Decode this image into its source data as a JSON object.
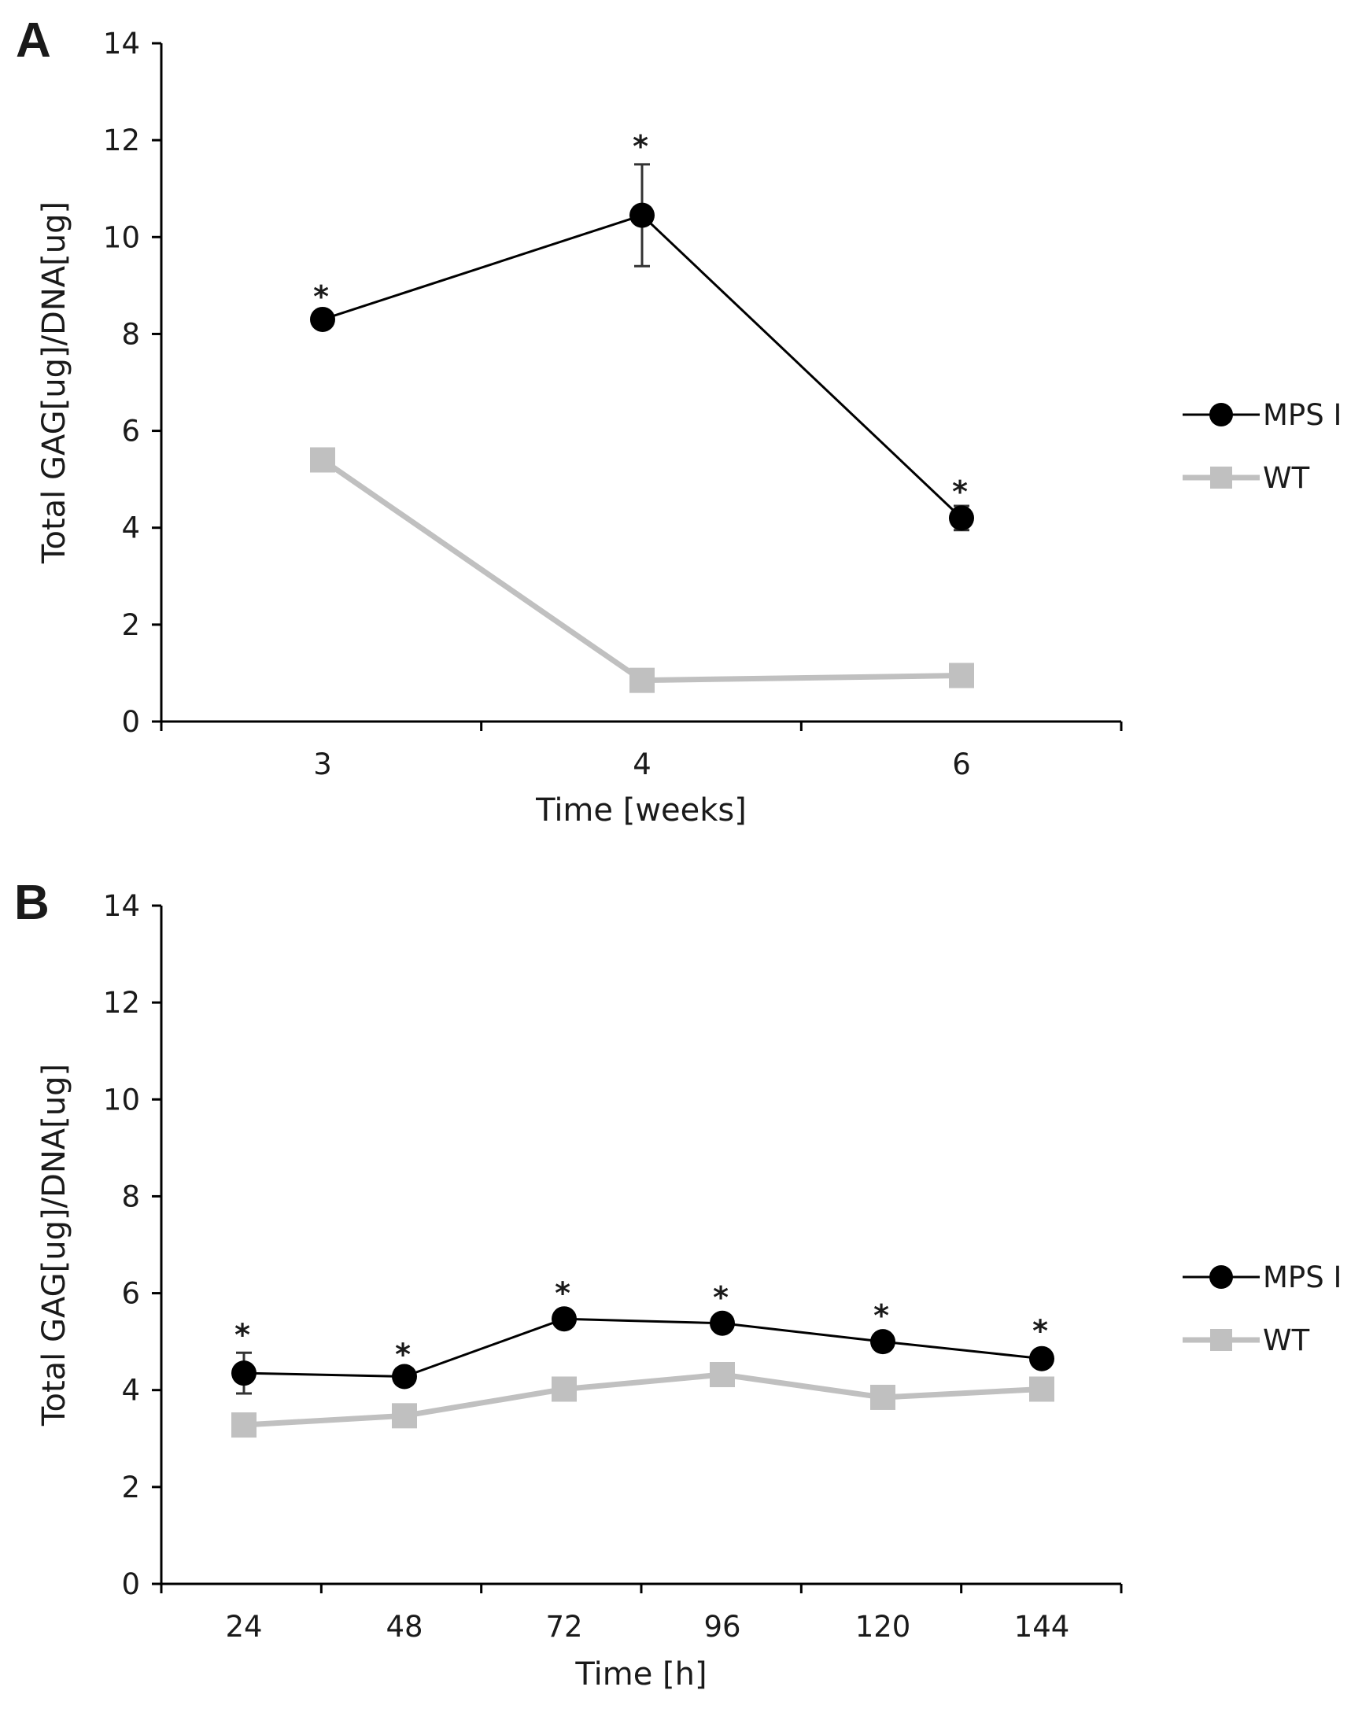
{
  "chart_data": [
    {
      "type": "line",
      "panel": "A",
      "xlabel": "Time [weeks]",
      "ylabel": "Total GAG[ug]/DNA[ug]",
      "categories": [
        "3",
        "4",
        "6"
      ],
      "ylim": [
        0,
        14
      ],
      "yticks": [
        "0",
        "2",
        "4",
        "6",
        "8",
        "10",
        "12",
        "14"
      ],
      "series": [
        {
          "name": "MPS I",
          "values": [
            8.3,
            10.45,
            4.2
          ],
          "errors": [
            0.1,
            1.05,
            0.25
          ],
          "significance": [
            "*",
            "*",
            "*"
          ],
          "color": "#000000",
          "marker": "circle"
        },
        {
          "name": "WT",
          "values": [
            5.4,
            0.85,
            0.95
          ],
          "errors": [
            0.1,
            0.1,
            0.1
          ],
          "color": "#c0c0c0",
          "marker": "square"
        }
      ],
      "legend_position": "right"
    },
    {
      "type": "line",
      "panel": "B",
      "xlabel": "Time [h]",
      "ylabel": "Total GAG[ug]/DNA[ug]",
      "categories": [
        "24",
        "48",
        "72",
        "96",
        "120",
        "144"
      ],
      "ylim": [
        0,
        14
      ],
      "yticks": [
        "0",
        "2",
        "4",
        "6",
        "8",
        "10",
        "12",
        "14"
      ],
      "series": [
        {
          "name": "MPS I",
          "values": [
            4.35,
            4.28,
            5.47,
            5.38,
            5.0,
            4.65
          ],
          "errors": [
            0.42,
            0.08,
            0.08,
            0.08,
            0.08,
            0.12
          ],
          "significance": [
            "*",
            "*",
            "*",
            "*",
            "*",
            "*"
          ],
          "color": "#000000",
          "marker": "circle"
        },
        {
          "name": "WT",
          "values": [
            3.28,
            3.47,
            4.02,
            4.32,
            3.85,
            4.02
          ],
          "errors": [
            0.08,
            0.08,
            0.08,
            0.08,
            0.08,
            0.08
          ],
          "color": "#c0c0c0",
          "marker": "square"
        }
      ],
      "legend_position": "right"
    }
  ]
}
